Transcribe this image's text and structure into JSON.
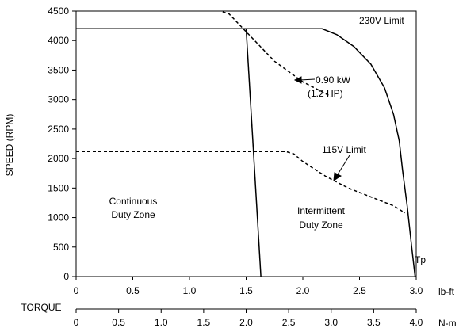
{
  "chart_data": {
    "type": "line",
    "xlabel": "TORQUE",
    "ylabel": "SPEED (RPM)",
    "x_unit_primary": "lb-ft",
    "x_unit_secondary": "N-m",
    "xlim": [
      0,
      3.0
    ],
    "ylim": [
      0,
      4500
    ],
    "xticks": [
      "0",
      "0.5",
      "1.0",
      "1.5",
      "2.0",
      "2.5",
      "3.0"
    ],
    "xticks_nm": [
      "0",
      "0.5",
      "1.0",
      "1.5",
      "2.0",
      "2.5",
      "3.0",
      "3.5",
      "4.0"
    ],
    "yticks": [
      "0",
      "500",
      "1000",
      "1500",
      "2000",
      "2500",
      "3000",
      "3500",
      "4000",
      "4500"
    ],
    "grid": false,
    "series": [
      {
        "style": "solid",
        "points": [
          [
            0,
            4200
          ],
          [
            2.17,
            4200
          ],
          [
            2.3,
            4100
          ],
          [
            2.45,
            3900
          ],
          [
            2.6,
            3600
          ],
          [
            2.72,
            3200
          ],
          [
            2.8,
            2750
          ],
          [
            2.85,
            2300
          ],
          [
            2.88,
            1800
          ],
          [
            2.92,
            1200
          ],
          [
            2.96,
            500
          ],
          [
            2.99,
            0
          ]
        ]
      },
      {
        "style": "solid",
        "points": [
          [
            1.5,
            4200
          ],
          [
            1.63,
            0
          ]
        ]
      },
      {
        "style": "dashed",
        "points": [
          [
            1.2,
            4550
          ],
          [
            1.35,
            4450
          ],
          [
            1.5,
            4150
          ],
          [
            1.75,
            3650
          ],
          [
            2.0,
            3300
          ],
          [
            2.25,
            3050
          ]
        ]
      },
      {
        "style": "dashed",
        "points": [
          [
            0,
            2120
          ],
          [
            1.85,
            2120
          ],
          [
            1.92,
            2080
          ],
          [
            2.0,
            1950
          ],
          [
            2.2,
            1700
          ],
          [
            2.4,
            1500
          ],
          [
            2.6,
            1350
          ],
          [
            2.8,
            1200
          ],
          [
            2.9,
            1080
          ]
        ]
      }
    ],
    "annotations": {
      "limit_230v": "230V Limit",
      "power_kw": "0.90 kW",
      "power_hp": "(1.2 HP)",
      "limit_115v": "115V Limit",
      "continuous_1": "Continuous",
      "continuous_2": "Duty Zone",
      "intermittent_1": "Intermittent",
      "intermittent_2": "Duty Zone",
      "peak": "Tp"
    }
  }
}
